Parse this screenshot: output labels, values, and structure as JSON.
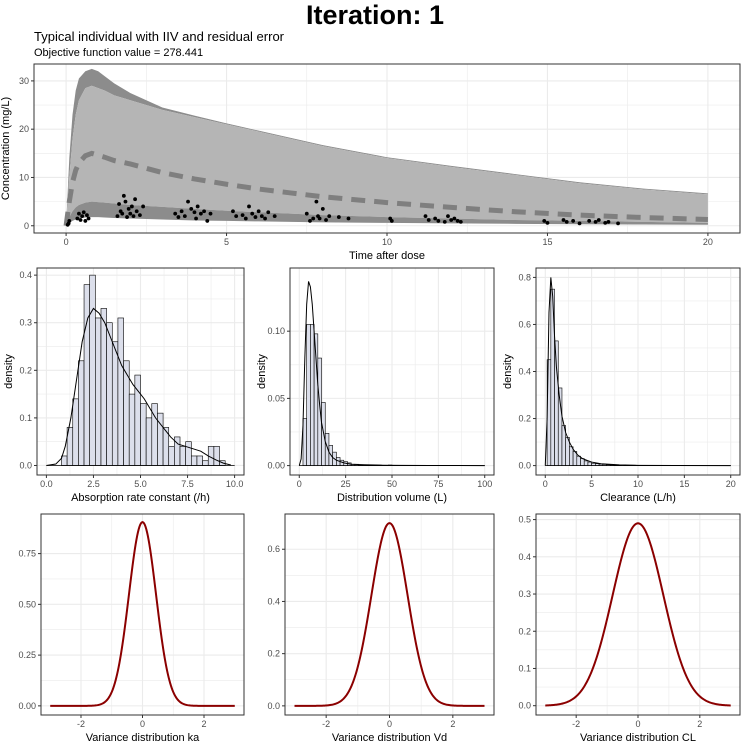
{
  "header": {
    "title": "Iteration: 1",
    "subtitle": "Typical individual with IIV and residual error",
    "ofv_label": "Objective function value = 278.441"
  },
  "colors": {
    "band_outer": "#8c8c8c",
    "band_inner": "#b5b5b5",
    "median_line": "#7f7f7f",
    "observation_points": "#000000",
    "hist_fill": "#dcdfeb",
    "variance_curve": "#8b0000",
    "grid": "#ebebeb"
  },
  "chart_data": [
    {
      "id": "concentration",
      "type": "area",
      "xlabel": "Time after dose",
      "ylabel": "Concentration (mg/L)",
      "xlim": [
        -1,
        21
      ],
      "ylim": [
        -1.5,
        33.5
      ],
      "xticks": [
        0,
        5,
        10,
        15,
        20
      ],
      "yticks": [
        0,
        10,
        20,
        30
      ],
      "grid": true,
      "series": [
        {
          "role": "band-upper",
          "x": [
            0,
            0.1,
            0.2,
            0.3,
            0.4,
            0.6,
            0.8,
            1.0,
            1.2,
            1.5,
            2,
            3,
            4,
            5,
            6,
            7,
            8,
            10,
            12,
            14,
            16,
            18,
            20
          ],
          "y_low": [
            0,
            10.0,
            18.0,
            23.0,
            26.0,
            28.5,
            29.0,
            28.5,
            28.0,
            27.0,
            26.0,
            24.0,
            22.5,
            21.0,
            19.5,
            18.0,
            16.5,
            14.0,
            12.2,
            10.5,
            8.8,
            7.5,
            6.5
          ],
          "y_high": [
            0,
            14.0,
            23.0,
            28.0,
            30.5,
            32.0,
            32.5,
            32.0,
            31.0,
            29.5,
            27.5,
            24.5,
            22.8,
            21.2,
            19.7,
            18.2,
            16.7,
            14.2,
            12.4,
            10.7,
            9.0,
            7.7,
            6.7
          ]
        },
        {
          "role": "band-inner",
          "x": [
            0,
            0.1,
            0.2,
            0.3,
            0.4,
            0.6,
            0.8,
            1.0,
            1.2,
            1.5,
            2,
            3,
            4,
            5,
            6,
            7,
            8,
            10,
            12,
            14,
            16,
            18,
            20
          ],
          "y_low": [
            0,
            1.8,
            3.0,
            3.8,
            4.3,
            4.8,
            5.0,
            4.9,
            4.8,
            4.6,
            4.3,
            3.9,
            3.5,
            3.1,
            2.8,
            2.5,
            2.2,
            1.8,
            1.5,
            1.2,
            1.0,
            0.8,
            0.6
          ],
          "y_high": [
            0,
            10.0,
            18.0,
            23.0,
            26.0,
            28.5,
            29.0,
            28.5,
            28.0,
            27.0,
            26.0,
            24.0,
            22.5,
            21.0,
            19.5,
            18.0,
            16.5,
            14.0,
            12.2,
            10.5,
            8.8,
            7.5,
            6.5
          ]
        },
        {
          "role": "band-lower",
          "x": [
            0,
            0.1,
            0.2,
            0.3,
            0.4,
            0.6,
            0.8,
            1.0,
            1.2,
            1.5,
            2,
            3,
            4,
            5,
            6,
            7,
            8,
            10,
            12,
            14,
            16,
            18,
            20
          ],
          "y_low": [
            0,
            0.6,
            1.0,
            1.3,
            1.5,
            1.7,
            1.8,
            1.8,
            1.7,
            1.6,
            1.5,
            1.3,
            1.1,
            1.0,
            0.9,
            0.8,
            0.7,
            0.6,
            0.5,
            0.4,
            0.3,
            0.25,
            0.2
          ],
          "y_high": [
            0,
            1.8,
            3.0,
            3.8,
            4.3,
            4.8,
            5.0,
            4.9,
            4.8,
            4.6,
            4.3,
            3.9,
            3.5,
            3.1,
            2.8,
            2.5,
            2.2,
            1.8,
            1.5,
            1.2,
            1.0,
            0.8,
            0.6
          ]
        },
        {
          "role": "median-dashed",
          "x": [
            0,
            0.1,
            0.2,
            0.3,
            0.4,
            0.6,
            0.8,
            1.0,
            1.2,
            1.5,
            2,
            3,
            4,
            5,
            6,
            7,
            8,
            10,
            12,
            14,
            16,
            18,
            20
          ],
          "y": [
            0,
            5.0,
            9.0,
            11.5,
            13.0,
            14.5,
            15.0,
            14.6,
            14.2,
            13.5,
            12.8,
            11.0,
            9.7,
            8.6,
            7.6,
            6.8,
            6.0,
            4.8,
            3.8,
            2.9,
            2.2,
            1.7,
            1.3
          ]
        },
        {
          "role": "observations",
          "x": [
            0.05,
            0.08,
            0.1,
            0.35,
            0.4,
            0.45,
            0.5,
            0.55,
            0.6,
            0.65,
            0.7,
            1.6,
            1.65,
            1.7,
            1.75,
            1.8,
            1.85,
            1.9,
            1.95,
            2.0,
            2.05,
            2.1,
            2.15,
            2.2,
            2.3,
            2.4,
            3.4,
            3.5,
            3.6,
            3.7,
            3.8,
            3.9,
            4.0,
            4.05,
            4.1,
            4.2,
            4.3,
            4.4,
            4.5,
            5.2,
            5.3,
            5.5,
            5.6,
            5.7,
            5.8,
            5.9,
            6.0,
            6.1,
            6.2,
            6.3,
            6.5,
            7.5,
            7.6,
            7.7,
            7.8,
            7.85,
            7.9,
            8.0,
            8.1,
            8.2,
            8.5,
            8.8,
            10.1,
            10.15,
            11.2,
            11.3,
            11.5,
            11.6,
            11.8,
            11.9,
            12.0,
            12.1,
            12.2,
            12.3,
            14.9,
            15.0,
            15.5,
            15.6,
            15.8,
            16.0,
            16.3,
            16.5,
            16.6,
            16.8,
            16.9,
            17.2
          ],
          "y": [
            0.2,
            0.5,
            1.0,
            1.5,
            2.5,
            1.2,
            2.0,
            2.8,
            1.0,
            2.2,
            1.5,
            2.0,
            4.5,
            3.0,
            2.5,
            6.2,
            5.0,
            1.8,
            3.5,
            2.5,
            4.0,
            2.0,
            5.5,
            3.0,
            2.2,
            4.0,
            2.5,
            1.8,
            3.0,
            2.0,
            5.0,
            3.5,
            2.8,
            1.5,
            4.0,
            2.5,
            3.0,
            1.0,
            2.5,
            3.0,
            2.0,
            2.2,
            1.5,
            4.0,
            2.5,
            1.8,
            3.0,
            2.0,
            1.5,
            2.8,
            2.0,
            2.5,
            1.0,
            1.5,
            5.0,
            2.0,
            1.5,
            3.5,
            1.2,
            2.0,
            1.8,
            1.5,
            1.5,
            1.0,
            2.0,
            1.2,
            1.5,
            1.0,
            0.8,
            2.0,
            1.2,
            1.5,
            1.0,
            0.8,
            1.0,
            0.6,
            1.2,
            0.8,
            1.0,
            0.5,
            1.0,
            0.8,
            1.2,
            0.6,
            0.8,
            0.5
          ]
        }
      ]
    },
    {
      "id": "ka-hist",
      "type": "bar",
      "xlabel": "Absorption rate constant (/h)",
      "ylabel": "density",
      "xlim": [
        -0.5,
        10.5
      ],
      "ylim": [
        -0.02,
        0.415
      ],
      "xticks": [
        0.0,
        2.5,
        5.0,
        7.5,
        10.0
      ],
      "xticklabels": [
        "0.0",
        "2.5",
        "5.0",
        "7.5",
        "10.0"
      ],
      "yticks": [
        0.0,
        0.1,
        0.2,
        0.3,
        0.4
      ],
      "yticklabels": [
        "0.0",
        "0.1",
        "0.2",
        "0.3",
        "0.4"
      ],
      "grid": true,
      "bin_edges": [
        0.8,
        1.1,
        1.4,
        1.7,
        2.0,
        2.3,
        2.6,
        2.9,
        3.2,
        3.5,
        3.8,
        4.1,
        4.4,
        4.7,
        5.0,
        5.3,
        5.6,
        5.9,
        6.2,
        6.5,
        6.8,
        7.1,
        7.4,
        7.7,
        8.0,
        8.3,
        8.6,
        8.9,
        9.2,
        9.5
      ],
      "values": [
        0.02,
        0.08,
        0.14,
        0.22,
        0.38,
        0.4,
        0.31,
        0.33,
        0.3,
        0.26,
        0.31,
        0.22,
        0.15,
        0.19,
        0.13,
        0.1,
        0.13,
        0.11,
        0.08,
        0.04,
        0.06,
        0.04,
        0.05,
        0.02,
        0.02,
        0.01,
        0.04,
        0.04,
        0.01
      ],
      "density": {
        "x": [
          0.0,
          0.5,
          0.8,
          1.0,
          1.3,
          1.6,
          1.9,
          2.2,
          2.5,
          2.8,
          3.1,
          3.4,
          3.7,
          4.0,
          4.3,
          4.6,
          4.9,
          5.2,
          5.5,
          5.8,
          6.2,
          6.6,
          7.0,
          7.4,
          7.8,
          8.2,
          8.6,
          9.0,
          9.4,
          9.8
        ],
        "y": [
          0.0,
          0.003,
          0.015,
          0.04,
          0.1,
          0.18,
          0.26,
          0.31,
          0.33,
          0.32,
          0.3,
          0.27,
          0.24,
          0.21,
          0.19,
          0.17,
          0.155,
          0.14,
          0.12,
          0.1,
          0.08,
          0.06,
          0.045,
          0.04,
          0.035,
          0.03,
          0.02,
          0.012,
          0.005,
          0.001
        ]
      }
    },
    {
      "id": "vd-hist",
      "type": "bar",
      "xlabel": "Distribution volume (L)",
      "ylabel": "density",
      "xlim": [
        -5,
        105
      ],
      "ylim": [
        -0.007,
        0.147
      ],
      "xticks": [
        0,
        25,
        50,
        75,
        100
      ],
      "yticks": [
        0.0,
        0.05,
        0.1
      ],
      "yticklabels": [
        "0.00",
        "0.05",
        "0.10"
      ],
      "grid": true,
      "bin_edges": [
        2,
        4,
        6,
        8,
        10,
        12,
        14,
        16,
        18,
        20,
        22,
        24,
        26,
        28,
        30,
        32,
        34,
        36,
        38,
        40,
        42,
        44,
        46,
        48,
        50
      ],
      "values": [
        0.035,
        0.105,
        0.105,
        0.098,
        0.08,
        0.047,
        0.024,
        0.015,
        0.01,
        0.006,
        0.004,
        0.003,
        0.002,
        0.001,
        0.001,
        0.0005,
        0.0005,
        0.0003,
        0.0003,
        0.0002,
        0.0002,
        0.0001,
        0.0001,
        0.0004
      ],
      "density": {
        "x": [
          0,
          1,
          2,
          3,
          4,
          5,
          6,
          7,
          8,
          9,
          10,
          11,
          12,
          14,
          16,
          18,
          20,
          24,
          28,
          35,
          45,
          55,
          70,
          85,
          100
        ],
        "y": [
          0.0,
          0.005,
          0.03,
          0.08,
          0.12,
          0.137,
          0.133,
          0.12,
          0.1,
          0.08,
          0.06,
          0.045,
          0.032,
          0.018,
          0.01,
          0.006,
          0.004,
          0.002,
          0.001,
          0.0006,
          0.0003,
          0.0002,
          0.0001,
          5e-05,
          0.0
        ]
      }
    },
    {
      "id": "cl-hist",
      "type": "bar",
      "xlabel": "Clearance (L/h)",
      "ylabel": "density",
      "xlim": [
        -1,
        21
      ],
      "ylim": [
        -0.04,
        0.84
      ],
      "xticks": [
        0,
        5,
        10,
        15,
        20
      ],
      "yticks": [
        0.0,
        0.2,
        0.4,
        0.6,
        0.8
      ],
      "yticklabels": [
        "0.0",
        "0.2",
        "0.4",
        "0.6",
        "0.8"
      ],
      "grid": true,
      "bin_edges": [
        0.2,
        0.6,
        1.0,
        1.4,
        1.8,
        2.2,
        2.6,
        3.0,
        3.4,
        3.8,
        4.2,
        4.6,
        5.0,
        5.4,
        5.8,
        6.2,
        6.6,
        7.0,
        7.4,
        7.8,
        8.2
      ],
      "values": [
        0.45,
        0.75,
        0.53,
        0.33,
        0.17,
        0.12,
        0.08,
        0.06,
        0.04,
        0.03,
        0.02,
        0.015,
        0.01,
        0.008,
        0.006,
        0.005,
        0.004,
        0.003,
        0.002,
        0.002
      ],
      "density": {
        "x": [
          0.0,
          0.2,
          0.4,
          0.6,
          0.8,
          1.0,
          1.2,
          1.5,
          1.8,
          2.2,
          2.6,
          3.0,
          3.5,
          4.0,
          5.0,
          6.0,
          8.0,
          10.0,
          14.0,
          20.0
        ],
        "y": [
          0.0,
          0.2,
          0.65,
          0.8,
          0.72,
          0.55,
          0.42,
          0.3,
          0.21,
          0.14,
          0.1,
          0.07,
          0.045,
          0.03,
          0.015,
          0.008,
          0.003,
          0.001,
          0.0003,
          0.0
        ]
      }
    },
    {
      "id": "var-ka",
      "type": "line",
      "xlabel": "Variance distribution ka",
      "xlim": [
        -3.3,
        3.3
      ],
      "ylim": [
        -0.045,
        0.945
      ],
      "xticks": [
        -2,
        0,
        2
      ],
      "yticks": [
        0.0,
        0.25,
        0.5,
        0.75
      ],
      "yticklabels": [
        "0.00",
        "0.25",
        "0.50",
        "0.75"
      ],
      "grid": true,
      "distribution": {
        "family": "normal",
        "mean": 0,
        "sd": 0.44,
        "peak": 0.905,
        "from": -3,
        "to": 3
      }
    },
    {
      "id": "var-vd",
      "type": "line",
      "xlabel": "Variance distribution Vd",
      "xlim": [
        -3.3,
        3.3
      ],
      "ylim": [
        -0.035,
        0.735
      ],
      "xticks": [
        -2,
        0,
        2
      ],
      "yticks": [
        0.0,
        0.2,
        0.4,
        0.6
      ],
      "yticklabels": [
        "0.0",
        "0.2",
        "0.4",
        "0.6"
      ],
      "grid": true,
      "distribution": {
        "family": "normal",
        "mean": 0,
        "sd": 0.57,
        "peak": 0.7,
        "from": -3,
        "to": 3
      }
    },
    {
      "id": "var-cl",
      "type": "line",
      "xlabel": "Variance distribution CL",
      "xlim": [
        -3.3,
        3.3
      ],
      "ylim": [
        -0.025,
        0.515
      ],
      "xticks": [
        -2,
        0,
        2
      ],
      "yticks": [
        0.0,
        0.1,
        0.2,
        0.3,
        0.4,
        0.5
      ],
      "yticklabels": [
        "0.0",
        "0.1",
        "0.2",
        "0.3",
        "0.4",
        "0.5"
      ],
      "grid": true,
      "distribution": {
        "family": "normal",
        "mean": 0,
        "sd": 0.82,
        "peak": 0.49,
        "from": -3,
        "to": 3
      }
    }
  ]
}
